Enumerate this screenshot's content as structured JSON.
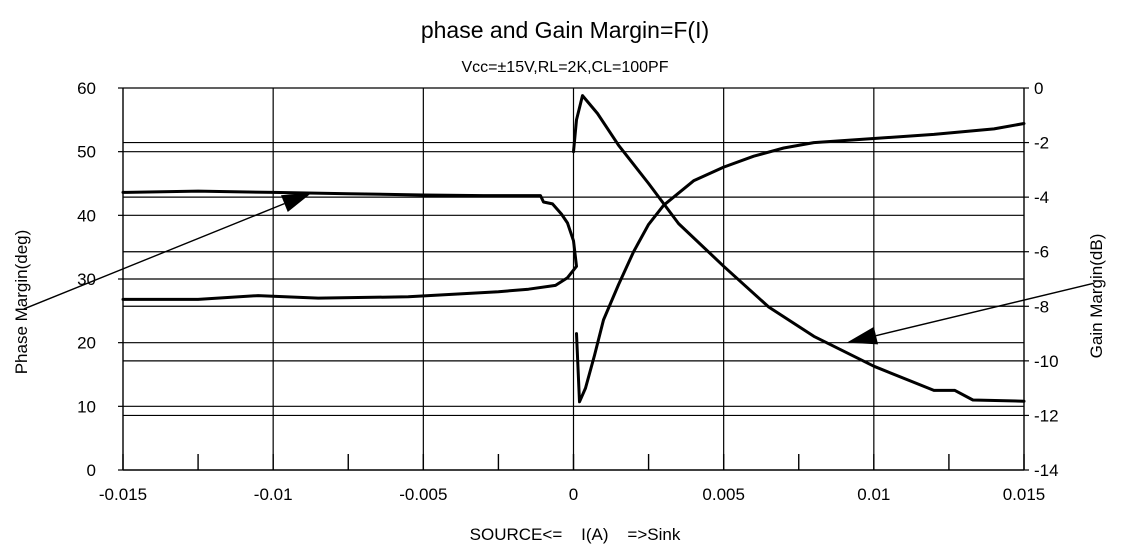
{
  "chart_data": {
    "type": "line",
    "title": "phase and Gain Margin=F(I)",
    "subtitle": "Vcc=±15V,RL=2K,CL=100PF",
    "xlabel": "SOURCE<=    I(A)    =>Sink",
    "ylabel_left": "Phase Margin(deg)",
    "ylabel_right": "Gain Margin(dB)",
    "xlim": [
      -0.015,
      0.015
    ],
    "ylim_left": [
      0,
      60
    ],
    "ylim_right": [
      -14,
      0
    ],
    "x_ticks": [
      "-0.015",
      "-0.01",
      "-0.005",
      "0",
      "0.005",
      "0.01",
      "0.015"
    ],
    "y_left_ticks": [
      "0",
      "10",
      "20",
      "30",
      "40",
      "50",
      "60"
    ],
    "y_right_ticks": [
      "0",
      "-2",
      "-4",
      "-6",
      "-8",
      "-10",
      "-12",
      "-14"
    ],
    "grid": true,
    "series": [
      {
        "axis": "left",
        "values": [
          [
            -0.015,
            43.6
          ],
          [
            -0.0125,
            43.8
          ],
          [
            -0.01,
            43.6
          ],
          [
            -0.0075,
            43.4
          ],
          [
            -0.005,
            43.2
          ],
          [
            -0.003,
            43.1
          ],
          [
            -0.0011,
            43.1
          ],
          [
            -0.001,
            42.1
          ],
          [
            -0.0007,
            41.8
          ],
          [
            -0.0004,
            40.2
          ],
          [
            -0.0002,
            38.8
          ],
          [
            0.0,
            36.0
          ],
          [
            0.0001,
            32.0
          ],
          [
            -0.0002,
            30.2
          ],
          [
            -0.0006,
            29.0
          ],
          [
            -0.0015,
            28.4
          ],
          [
            -0.0025,
            28.0
          ],
          [
            -0.004,
            27.6
          ],
          [
            -0.0055,
            27.2
          ],
          [
            -0.0085,
            27.0
          ],
          [
            -0.0105,
            27.4
          ],
          [
            -0.0125,
            26.8
          ],
          [
            -0.015,
            26.8
          ]
        ]
      },
      {
        "axis": "right",
        "values": [
          [
            0.0001,
            -9.0
          ],
          [
            0.0002,
            -11.5
          ],
          [
            0.0004,
            -11.0
          ],
          [
            0.0007,
            -9.8
          ],
          [
            0.001,
            -8.5
          ],
          [
            0.0015,
            -7.2
          ],
          [
            0.002,
            -6.0
          ],
          [
            0.0025,
            -5.0
          ],
          [
            0.003,
            -4.3
          ],
          [
            0.004,
            -3.4
          ],
          [
            0.005,
            -2.9
          ],
          [
            0.006,
            -2.5
          ],
          [
            0.007,
            -2.2
          ],
          [
            0.008,
            -2.0
          ],
          [
            0.01,
            -1.85
          ],
          [
            0.012,
            -1.7
          ],
          [
            0.014,
            -1.5
          ],
          [
            0.015,
            -1.3
          ]
        ]
      },
      {
        "axis": "left",
        "values": [
          [
            0.0,
            50.0
          ],
          [
            0.0001,
            55.0
          ],
          [
            0.0003,
            58.8
          ],
          [
            0.0008,
            56.0
          ],
          [
            0.0015,
            51.0
          ],
          [
            0.0025,
            45.0
          ],
          [
            0.0035,
            38.7
          ],
          [
            0.005,
            32.0
          ],
          [
            0.0065,
            25.6
          ],
          [
            0.008,
            21.0
          ],
          [
            0.01,
            16.3
          ],
          [
            0.012,
            12.5
          ],
          [
            0.0127,
            12.5
          ],
          [
            0.0133,
            11.0
          ],
          [
            0.015,
            10.8
          ]
        ]
      }
    ],
    "annotations": [
      {
        "from": [
          -0.0183,
          25.3
        ],
        "to": [
          -0.0087,
          43.6
        ],
        "target": "phase"
      },
      {
        "from": [
          0.0173,
          29.3
        ],
        "to": [
          0.0091,
          20.0
        ],
        "target": "gain"
      }
    ]
  }
}
